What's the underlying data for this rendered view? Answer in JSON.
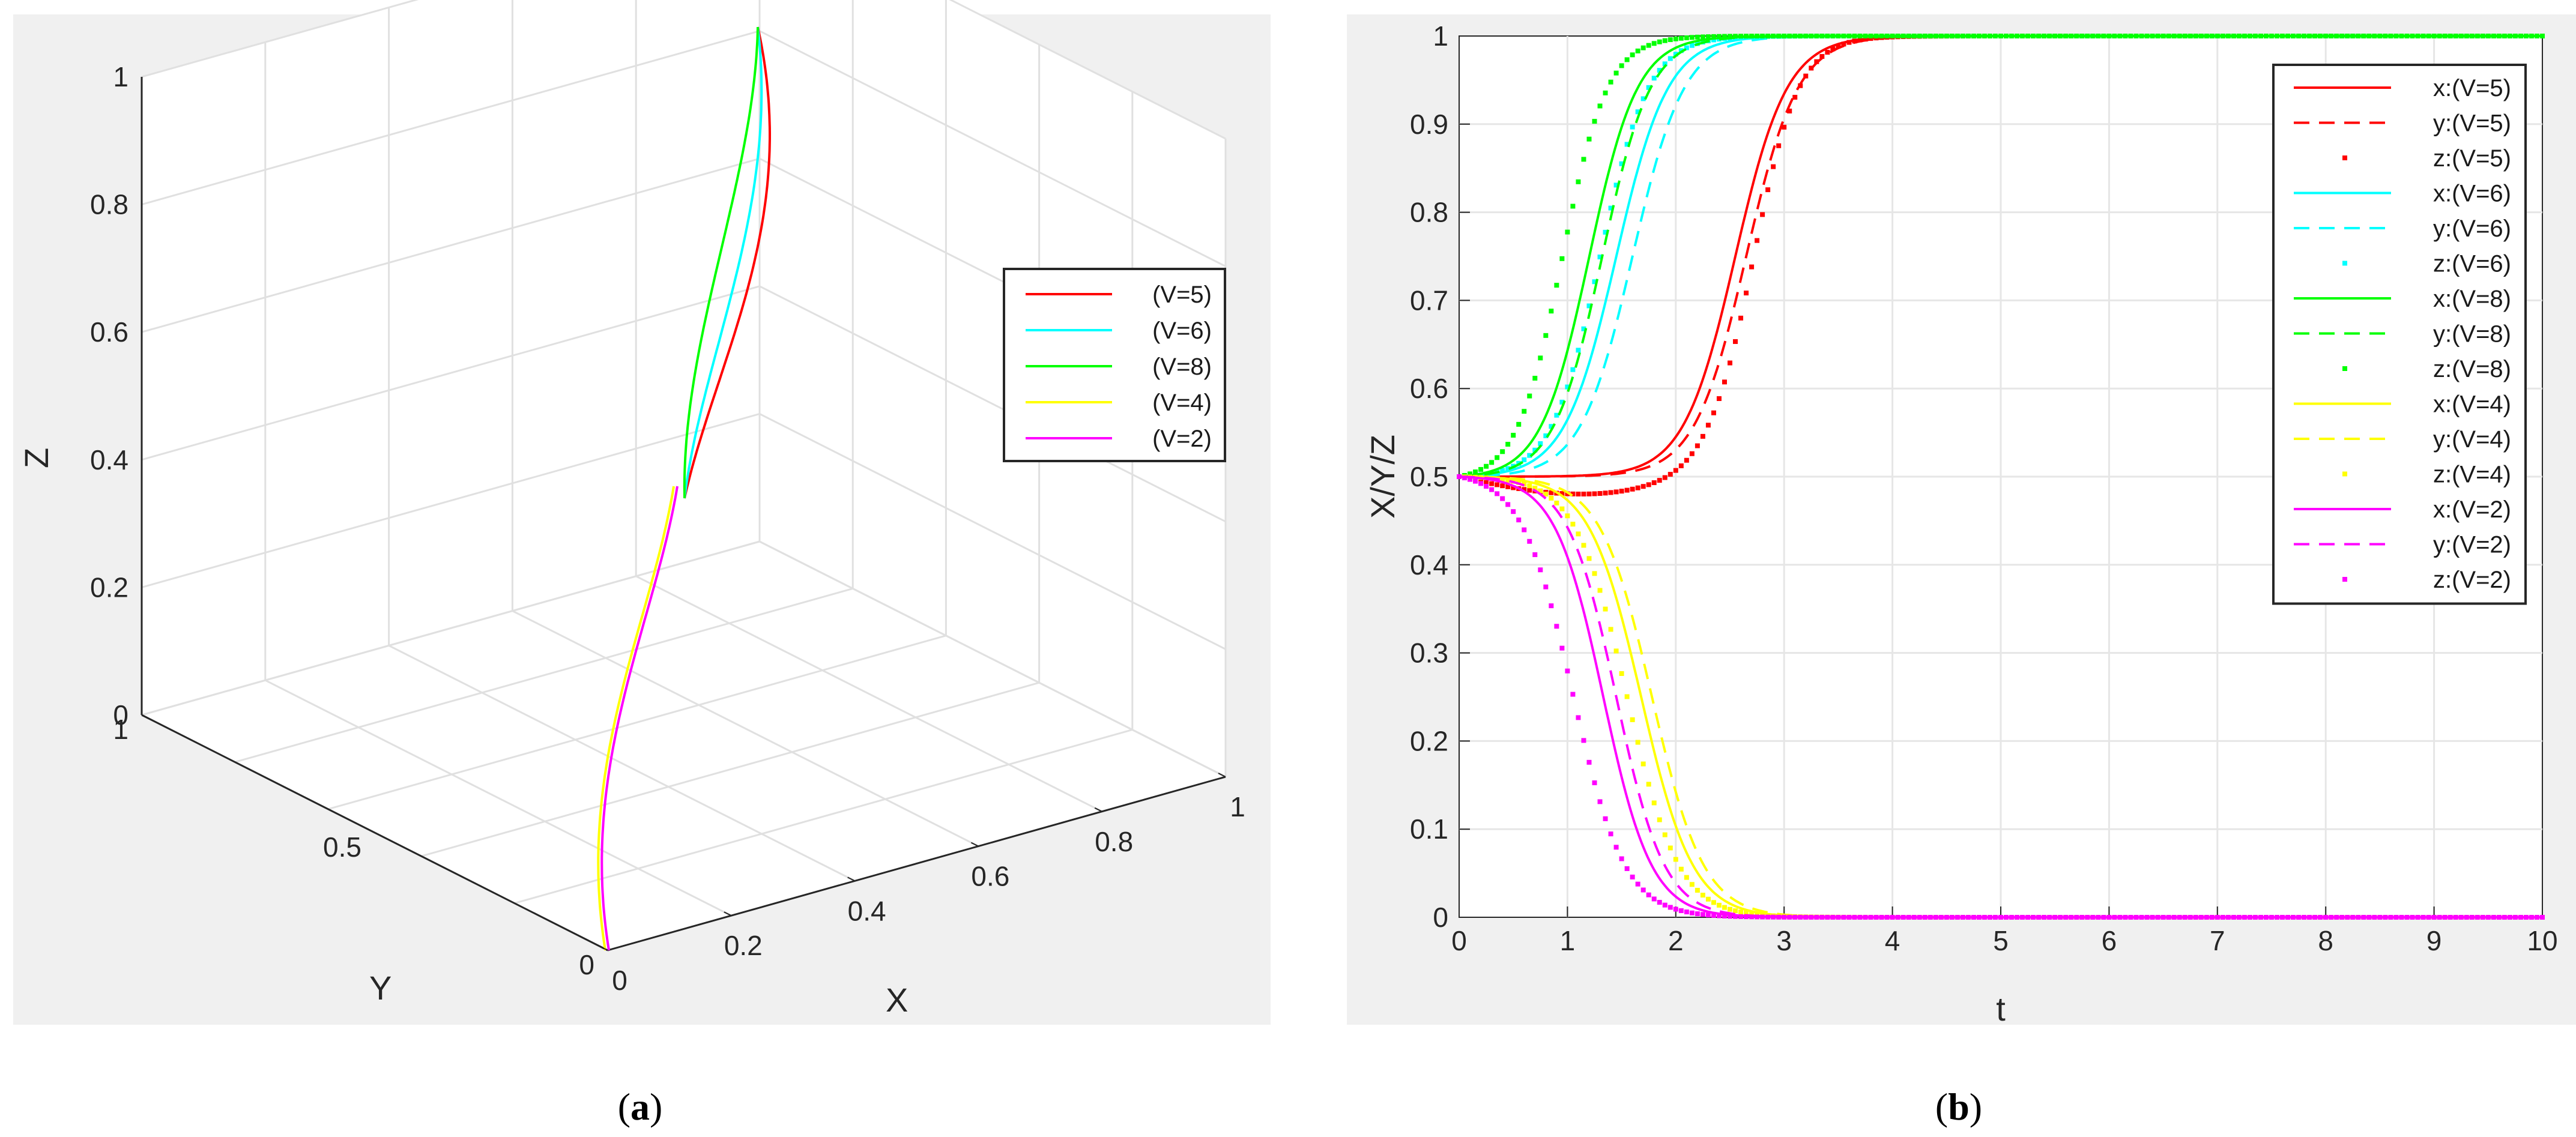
{
  "captions": {
    "a_open": "(",
    "a_letter": "a",
    "a_close": ")",
    "b_open": "(",
    "b_letter": "b",
    "b_close": ")"
  },
  "colors": {
    "figure_bg": "#f0f0f0",
    "axes_bg": "#ffffff",
    "grid": "#e3e3e3",
    "V5": "#ff0000",
    "V6": "#00ffff",
    "V8": "#00ff00",
    "V4": "#ffff00",
    "V2": "#ff00ff"
  },
  "chart_data": [
    {
      "type": "line",
      "subtype": "3d-trajectory",
      "title": "",
      "xlabel": "X",
      "ylabel": "Y",
      "zlabel": "Z",
      "xlim": [
        0,
        1
      ],
      "ylim": [
        0,
        1
      ],
      "zlim": [
        0,
        1
      ],
      "xticks": [
        "0",
        "0.2",
        "0.4",
        "0.6",
        "0.8",
        "1"
      ],
      "yticks": [
        "0",
        "0.5",
        "1"
      ],
      "zticks": [
        "0",
        "0.2",
        "0.4",
        "0.6",
        "0.8",
        "1"
      ],
      "grid": true,
      "legend_position": "right",
      "series": [
        {
          "name": "(V=5)",
          "color": "#ff0000"
        },
        {
          "name": "(V=6)",
          "color": "#00ffff"
        },
        {
          "name": "(V=8)",
          "color": "#00ff00"
        },
        {
          "name": "(V=4)",
          "color": "#ffff00"
        },
        {
          "name": "(V=2)",
          "color": "#ff00ff"
        }
      ]
    },
    {
      "type": "line",
      "title": "",
      "xlabel": "t",
      "ylabel": "X/Y/Z",
      "xlim": [
        0,
        10
      ],
      "ylim": [
        0,
        1
      ],
      "xticks": [
        "0",
        "1",
        "2",
        "3",
        "4",
        "5",
        "6",
        "7",
        "8",
        "9",
        "10"
      ],
      "yticks": [
        "0",
        "0.1",
        "0.2",
        "0.3",
        "0.4",
        "0.5",
        "0.6",
        "0.7",
        "0.8",
        "0.9",
        "1"
      ],
      "grid": true,
      "legend_position": "top-right",
      "model": "logistic, value(t) = 0.5 + (final - 0.5) * s(t) with s = logistic over midpoint t0 and rate k",
      "series": [
        {
          "name": "x:(V=5)",
          "style": "solid",
          "color": "#ff0000",
          "final": 1,
          "t0": 2.55,
          "k": 4.2,
          "dip": 0.0
        },
        {
          "name": "y:(V=5)",
          "style": "dashed",
          "color": "#ff0000",
          "final": 1,
          "t0": 2.65,
          "k": 4.2,
          "dip": 0.0
        },
        {
          "name": "z:(V=5)",
          "style": "dotted",
          "color": "#ff0000",
          "final": 1,
          "t0": 2.72,
          "k": 4.8,
          "dip": 0.02
        },
        {
          "name": "x:(V=6)",
          "style": "solid",
          "color": "#00ffff",
          "final": 1,
          "t0": 1.45,
          "k": 4.2,
          "dip": 0.0
        },
        {
          "name": "y:(V=6)",
          "style": "dashed",
          "color": "#00ffff",
          "final": 1,
          "t0": 1.6,
          "k": 4.2,
          "dip": 0.0
        },
        {
          "name": "z:(V=6)",
          "style": "dotted",
          "color": "#00ffff",
          "final": 1,
          "t0": 1.3,
          "k": 4.5,
          "dip": 0.0
        },
        {
          "name": "x:(V=8)",
          "style": "solid",
          "color": "#00ff00",
          "final": 1,
          "t0": 1.2,
          "k": 4.5,
          "dip": 0.0
        },
        {
          "name": "y:(V=8)",
          "style": "dashed",
          "color": "#00ff00",
          "final": 1,
          "t0": 1.32,
          "k": 4.5,
          "dip": 0.0
        },
        {
          "name": "z:(V=8)",
          "style": "dotted",
          "color": "#00ff00",
          "final": 1,
          "t0": 0.95,
          "k": 4.8,
          "dip": 0.0
        },
        {
          "name": "x:(V=4)",
          "style": "solid",
          "color": "#ffff00",
          "final": 0,
          "t0": 1.68,
          "k": 4.2,
          "dip": 0.0
        },
        {
          "name": "y:(V=4)",
          "style": "dashed",
          "color": "#ffff00",
          "final": 0,
          "t0": 1.78,
          "k": 4.2,
          "dip": 0.0
        },
        {
          "name": "z:(V=4)",
          "style": "dotted",
          "color": "#ffff00",
          "final": 0,
          "t0": 1.55,
          "k": 4.2,
          "dip": 0.0
        },
        {
          "name": "x:(V=2)",
          "style": "solid",
          "color": "#ff00ff",
          "final": 0,
          "t0": 1.33,
          "k": 4.5,
          "dip": 0.0
        },
        {
          "name": "y:(V=2)",
          "style": "dashed",
          "color": "#ff00ff",
          "final": 0,
          "t0": 1.45,
          "k": 4.5,
          "dip": 0.0
        },
        {
          "name": "z:(V=2)",
          "style": "dotted",
          "color": "#ff00ff",
          "final": 0,
          "t0": 1.05,
          "k": 4.2,
          "dip": 0.0
        }
      ]
    }
  ]
}
